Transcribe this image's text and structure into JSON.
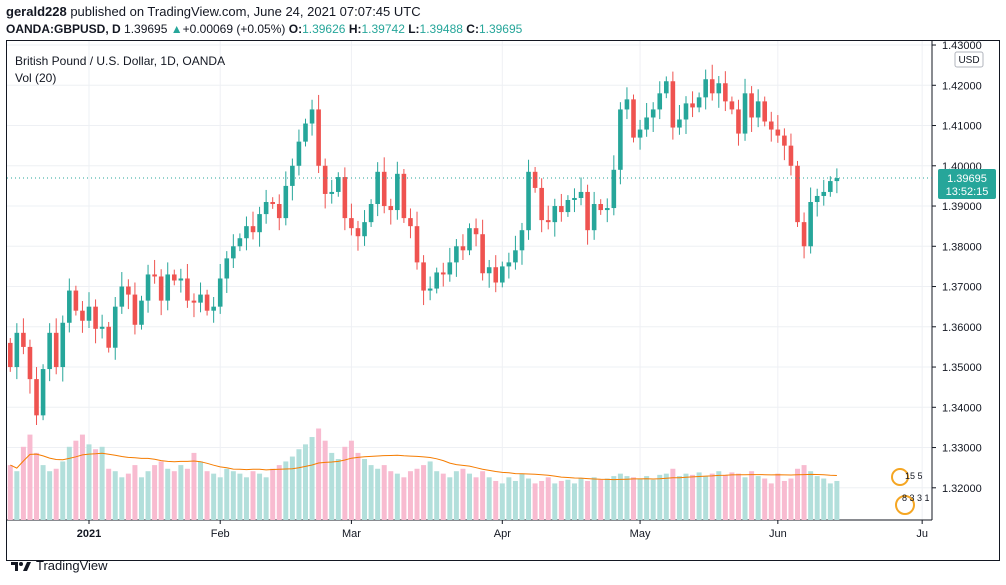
{
  "header": {
    "user": "gerald228",
    "published_text": "published on TradingView.com, June 24, 2021 07:07:45 UTC",
    "symbol_line": "OANDA:GBPUSD, D",
    "last": "1.39695",
    "change_arrow": "▲",
    "change": "+0.00069 (+0.05%)",
    "o_label": "O:",
    "o_value": "1.39626",
    "h_label": "H:",
    "h_value": "1.39742",
    "l_label": "L:",
    "l_value": "1.39488",
    "c_label": "C:",
    "c_value": "1.39695"
  },
  "legend": {
    "title": "British Pound / U.S. Dollar, 1D, OANDA",
    "volume": "Vol (20)"
  },
  "axis": {
    "currency": "USD",
    "price_label": "1.39695",
    "countdown": "13:52:15"
  },
  "events": {
    "row1": "15 5",
    "row2": "8 3 3 1"
  },
  "footer": {
    "brand": "TradingView"
  },
  "colors": {
    "up": "#26a69a",
    "down": "#ef5350",
    "up_vol": "#b2dfdb",
    "down_vol": "#f8bbd0",
    "ma": "#f57c00",
    "grid": "#eef0f4",
    "price_line": "#26a69a"
  },
  "chart_data": {
    "type": "candlestick",
    "title": "British Pound / U.S. Dollar, 1D, OANDA",
    "ylim": [
      1.312,
      1.431
    ],
    "yticks": [
      1.32,
      1.33,
      1.34,
      1.35,
      1.36,
      1.37,
      1.38,
      1.39,
      1.4,
      1.41,
      1.42,
      1.43
    ],
    "ytick_labels": [
      "1.32000",
      "1.33000",
      "1.34000",
      "1.35000",
      "1.36000",
      "1.37000",
      "1.38000",
      "1.39000",
      "1.40000",
      "1.41000",
      "1.42000",
      "1.43000"
    ],
    "xticks": [
      {
        "label": "2021",
        "index": 12
      },
      {
        "label": "Feb",
        "index": 32
      },
      {
        "label": "Mar",
        "index": 52
      },
      {
        "label": "Apr",
        "index": 75
      },
      {
        "label": "May",
        "index": 96
      },
      {
        "label": "Jun",
        "index": 117
      },
      {
        "label": "Ju",
        "index": 139
      }
    ],
    "bars_total": 141,
    "series_close": [
      1.35,
      1.3585,
      1.355,
      1.347,
      1.338,
      1.3495,
      1.3585,
      1.35,
      1.361,
      1.369,
      1.364,
      1.3615,
      1.365,
      1.3595,
      1.36,
      1.3548,
      1.365,
      1.37,
      1.368,
      1.3605,
      1.3665,
      1.373,
      1.3725,
      1.3665,
      1.373,
      1.3715,
      1.372,
      1.3665,
      1.366,
      1.368,
      1.364,
      1.365,
      1.372,
      1.377,
      1.38,
      1.382,
      1.385,
      1.3835,
      1.388,
      1.391,
      1.3905,
      1.387,
      1.395,
      1.4,
      1.406,
      1.4105,
      1.414,
      1.4,
      1.393,
      1.3935,
      1.3972,
      1.387,
      1.3845,
      1.3825,
      1.386,
      1.3905,
      1.3985,
      1.39,
      1.389,
      1.398,
      1.387,
      1.385,
      1.376,
      1.369,
      1.3695,
      1.3735,
      1.373,
      1.376,
      1.38,
      1.379,
      1.3845,
      1.383,
      1.3733,
      1.3748,
      1.371,
      1.375,
      1.376,
      1.379,
      1.384,
      1.3985,
      1.3945,
      1.3865,
      1.386,
      1.39,
      1.3885,
      1.3915,
      1.392,
      1.3935,
      1.384,
      1.3905,
      1.389,
      1.3895,
      1.399,
      1.414,
      1.4165,
      1.407,
      1.409,
      1.412,
      1.414,
      1.418,
      1.421,
      1.4095,
      1.4115,
      1.4155,
      1.4145,
      1.417,
      1.4215,
      1.418,
      1.4205,
      1.416,
      1.414,
      1.408,
      1.418,
      1.412,
      1.416,
      1.411,
      1.409,
      1.4075,
      1.405,
      1.4,
      1.386,
      1.38,
      1.391,
      1.3925,
      1.3935,
      1.3962,
      1.39695
    ],
    "first_open": 1.356,
    "volume_relative": [
      0.45,
      0.4,
      0.6,
      0.7,
      0.55,
      0.45,
      0.4,
      0.42,
      0.48,
      0.6,
      0.65,
      0.7,
      0.62,
      0.58,
      0.6,
      0.42,
      0.4,
      0.35,
      0.38,
      0.45,
      0.35,
      0.4,
      0.45,
      0.48,
      0.42,
      0.4,
      0.45,
      0.42,
      0.55,
      0.48,
      0.4,
      0.38,
      0.35,
      0.42,
      0.4,
      0.38,
      0.35,
      0.4,
      0.38,
      0.35,
      0.42,
      0.45,
      0.48,
      0.52,
      0.58,
      0.62,
      0.68,
      0.75,
      0.65,
      0.55,
      0.5,
      0.6,
      0.65,
      0.55,
      0.5,
      0.45,
      0.42,
      0.45,
      0.4,
      0.38,
      0.35,
      0.4,
      0.42,
      0.45,
      0.48,
      0.4,
      0.38,
      0.35,
      0.4,
      0.42,
      0.38,
      0.35,
      0.4,
      0.35,
      0.32,
      0.3,
      0.35,
      0.32,
      0.38,
      0.34,
      0.3,
      0.32,
      0.35,
      0.3,
      0.32,
      0.33,
      0.3,
      0.34,
      0.32,
      0.35,
      0.33,
      0.34,
      0.36,
      0.38,
      0.36,
      0.35,
      0.34,
      0.36,
      0.33,
      0.37,
      0.38,
      0.42,
      0.36,
      0.38,
      0.37,
      0.39,
      0.36,
      0.38,
      0.4,
      0.37,
      0.39,
      0.38,
      0.35,
      0.4,
      0.36,
      0.34,
      0.3,
      0.38,
      0.32,
      0.34,
      0.42,
      0.45,
      0.4,
      0.36,
      0.34,
      0.3,
      0.32
    ],
    "volume_ma": "20-period moving average"
  }
}
